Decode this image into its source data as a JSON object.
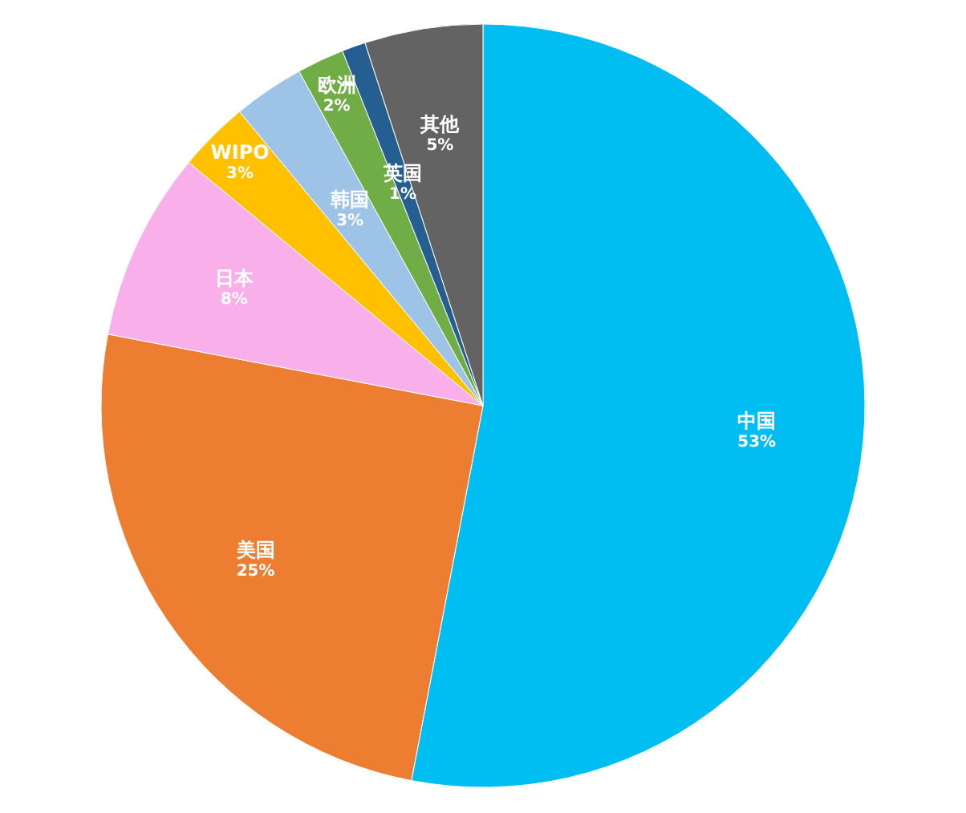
{
  "chart_data": {
    "type": "pie",
    "categories": [
      "中国",
      "美国",
      "日本",
      "WIPO",
      "韩国",
      "欧洲",
      "英国",
      "其他"
    ],
    "values": [
      53,
      25,
      8,
      3,
      3,
      2,
      1,
      5
    ],
    "colors": [
      "#00bdf2",
      "#ed7d31",
      "#f9b0ea",
      "#ffc000",
      "#9dc3e6",
      "#70ad47",
      "#255e91",
      "#636363"
    ],
    "value_labels": [
      "53%",
      "25%",
      "8%",
      "3%",
      "3%",
      "2%",
      "1%",
      "5%"
    ]
  }
}
